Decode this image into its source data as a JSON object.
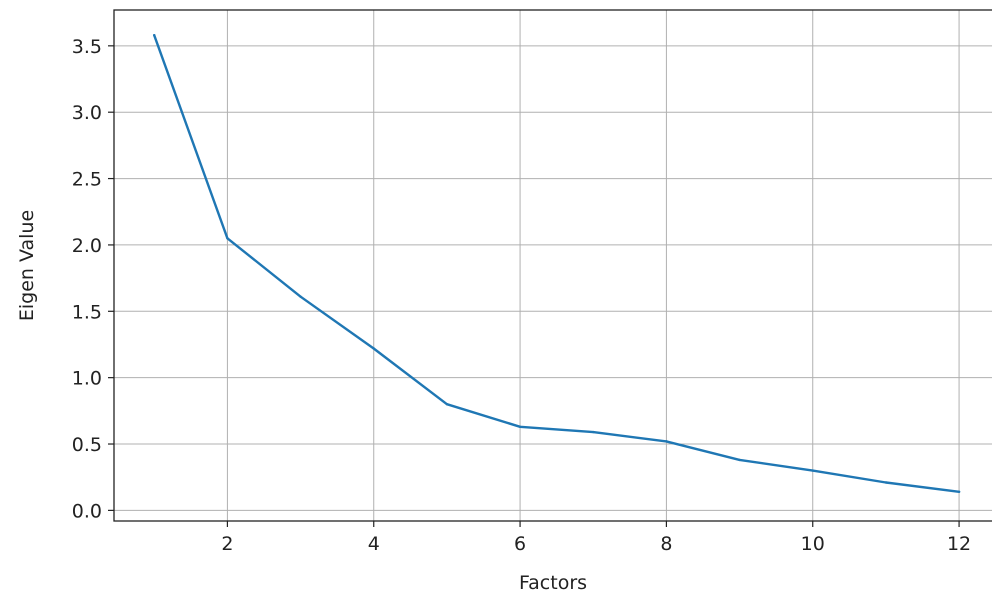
{
  "chart_data": {
    "type": "line",
    "title": "",
    "xlabel": "Factors",
    "ylabel": "Eigen Value",
    "xlim": [
      0.45,
      12.45
    ],
    "ylim": [
      -0.08,
      3.77
    ],
    "xticks": [
      2,
      4,
      6,
      8,
      10,
      12
    ],
    "yticks": [
      0.0,
      0.5,
      1.0,
      1.5,
      2.0,
      2.5,
      3.0,
      3.5
    ],
    "xtick_labels": [
      "2",
      "4",
      "6",
      "8",
      "10",
      "12"
    ],
    "ytick_labels": [
      "0.0",
      "0.5",
      "1.0",
      "1.5",
      "2.0",
      "2.5",
      "3.0",
      "3.5"
    ],
    "grid": true,
    "legend": "none",
    "series": [
      {
        "color": "#1f77b4",
        "x": [
          1,
          2,
          3,
          4,
          5,
          6,
          7,
          8,
          9,
          10,
          11,
          12
        ],
        "y": [
          3.58,
          2.05,
          1.61,
          1.22,
          0.8,
          0.63,
          0.59,
          0.52,
          0.38,
          0.3,
          0.21,
          0.14
        ]
      }
    ]
  }
}
